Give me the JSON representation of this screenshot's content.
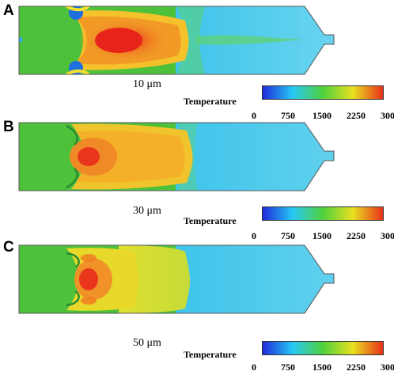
{
  "panels": [
    {
      "letter": "A",
      "particle_size": "10 μm"
    },
    {
      "letter": "B",
      "particle_size": "30 μm"
    },
    {
      "letter": "C",
      "particle_size": "50 μm"
    }
  ],
  "colorbar": {
    "title": "Temperature",
    "ticks": [
      "0",
      "750",
      "1500",
      "2250",
      "3000"
    ],
    "colors": [
      "#1f2bd9",
      "#27c8f5",
      "#4fd13c",
      "#e8e020",
      "#e83018"
    ]
  },
  "colors": {
    "ambient": "#4dc13a",
    "hot_core": "#e8391c",
    "warm": "#f08a2a",
    "cool_tail": "#3cc2e8"
  }
}
